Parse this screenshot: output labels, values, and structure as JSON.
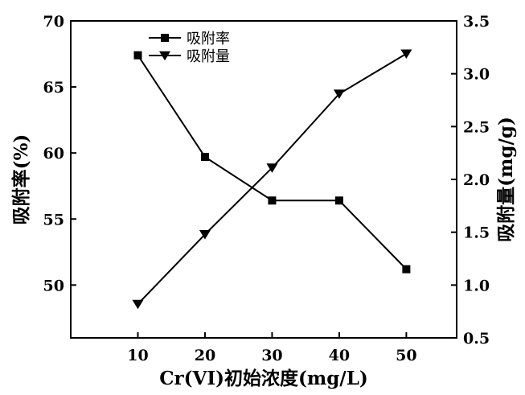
{
  "chart_data": {
    "type": "line",
    "xlabel": "Cr(VI)初始浓度(mg/L)",
    "ylabel_left": "吸附率(%)",
    "ylabel_right": "吸附量(mg/g)",
    "x": [
      10,
      20,
      30,
      40,
      50
    ],
    "xlim": [
      0,
      57.5
    ],
    "xticks": [
      "10",
      "20",
      "30",
      "40",
      "50"
    ],
    "ylim_left": [
      46,
      70
    ],
    "yticks_left": [
      "50",
      "55",
      "60",
      "65",
      "70"
    ],
    "ylim_right": [
      0.5,
      3.5
    ],
    "yticks_right": [
      "0.5",
      "1.0",
      "1.5",
      "2.0",
      "2.5",
      "3.0",
      "3.5"
    ],
    "legend_position": "top-left",
    "series": [
      {
        "name": "吸附率",
        "axis": "left",
        "marker": "square",
        "values": [
          67.4,
          59.7,
          56.4,
          56.4,
          51.2
        ]
      },
      {
        "name": "吸附量",
        "axis": "right",
        "marker": "triangle-down",
        "values": [
          0.82,
          1.48,
          2.11,
          2.81,
          3.19
        ]
      }
    ],
    "grid": false
  }
}
